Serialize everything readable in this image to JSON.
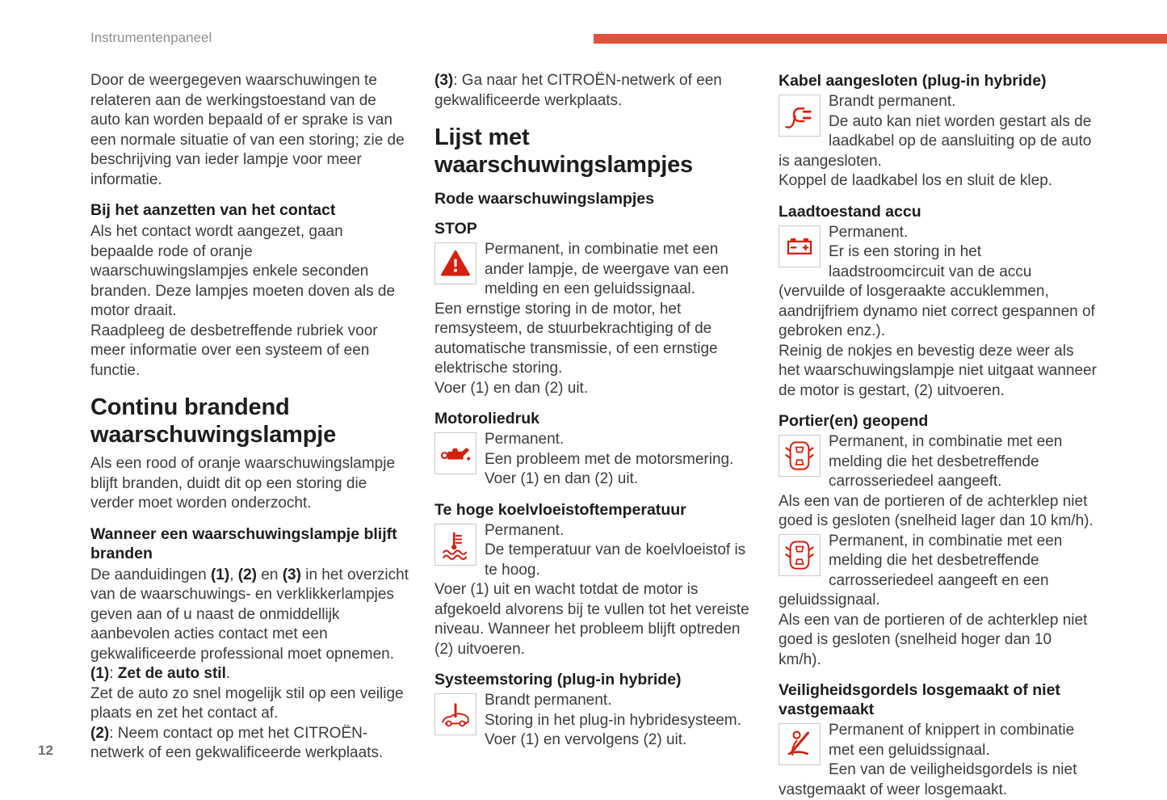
{
  "header": {
    "breadcrumb": "Instrumentenpaneel",
    "accent_bar_color": "#e2503c"
  },
  "footer": {
    "page_number": "12"
  },
  "colors": {
    "icon_red": "#d6200f",
    "heading": "#1d1d1b",
    "body_text": "#3c3c3c"
  },
  "col1": {
    "intro": "Door de weergegeven waarschuwingen te relateren aan de werkingstoestand van de auto kan worden bepaald of er sprake is van een normale situatie of van een storing; zie de beschrijving van ieder lampje voor meer informatie.",
    "h_contact": "Bij het aanzetten van het contact",
    "p_contact_1": "Als het contact wordt aangezet, gaan bepaalde rode of oranje waarschuwingslampjes enkele seconden branden. Deze lampjes moeten doven als de motor draait.",
    "p_contact_2": "Raadpleeg de desbetreffende rubriek voor meer informatie over een systeem of een functie.",
    "h_continu": "Continu brandend waarschuwingslampje",
    "p_continu": "Als een rood of oranje waarschuwingslampje blijft branden, duidt dit op een storing die verder moet worden onderzocht.",
    "h_blijft": "Wanneer een waarschuwingslampje blijft branden",
    "rich_aanduidingen": [
      {
        "t": "De aanduidingen "
      },
      {
        "t": "(1)",
        "b": true
      },
      {
        "t": ", "
      },
      {
        "t": "(2)",
        "b": true
      },
      {
        "t": " en "
      },
      {
        "t": "(3)",
        "b": true
      },
      {
        "t": " in het overzicht van de waarschuwings- en verklikkerlampjes geven aan of u naast de onmiddellijk aanbevolen acties contact met een gekwalificeerde professional moet opnemen."
      }
    ],
    "rich_actie1": [
      {
        "t": "(1)",
        "b": true
      },
      {
        "t": ": "
      },
      {
        "t": "Zet de auto stil",
        "b": true
      },
      {
        "t": "."
      }
    ],
    "p_actie1": "Zet de auto zo snel mogelijk stil op een veilige plaats en zet het contact af.",
    "rich_actie2": [
      {
        "t": "(2)",
        "b": true
      },
      {
        "t": ": Neem contact op met het CITROËN-netwerk of een gekwalificeerde werkplaats."
      }
    ]
  },
  "col2": {
    "rich_actie3": [
      {
        "t": "(3)",
        "b": true
      },
      {
        "t": ": Ga naar het CITROËN-netwerk of een gekwalificeerde werkplaats."
      }
    ],
    "h_lijst": "Lijst met waarschuwingslampjes",
    "h_rode": "Rode waarschuwingslampjes",
    "entries": [
      {
        "title": "STOP",
        "icon": "warning-triangle-icon",
        "paragraphs": [
          "Permanent, in combinatie met een ander lampje, de weergave van een melding en een geluidssignaal.",
          "Een ernstige storing in de motor, het remsysteem, de stuurbekrachtiging of de automatische transmissie, of een ernstige elektrische storing.",
          "Voer (1) en dan (2) uit."
        ]
      },
      {
        "title": "Motoroliedruk",
        "icon": "oil-can-icon",
        "paragraphs": [
          "Permanent.",
          "Een probleem met de motorsmering.",
          "Voer (1) en dan (2) uit."
        ]
      },
      {
        "title": "Te hoge koelvloeistoftemperatuur",
        "icon": "coolant-temperature-icon",
        "paragraphs": [
          "Permanent.",
          "De temperatuur van de koelvloeistof is te hoog.",
          "Voer (1) uit en wacht totdat de motor is afgekoeld alvorens bij te vullen tot het vereiste niveau. Wanneer het probleem blijft optreden (2) uitvoeren."
        ]
      },
      {
        "title": "Systeemstoring (plug-in hybride)",
        "icon": "hybrid-system-fault-icon",
        "paragraphs": [
          "Brandt permanent.",
          "Storing in het plug-in hybridesysteem.",
          "Voer (1) en vervolgens (2) uit."
        ]
      }
    ]
  },
  "col3": {
    "entries": [
      {
        "title": "Kabel aangesloten (plug-in hybride)",
        "icon": "charging-plug-icon",
        "paragraphs": [
          "Brandt permanent.",
          "De auto kan niet worden gestart als de laadkabel op de aansluiting op de auto is aangesloten.",
          "Koppel de laadkabel los en sluit de klep."
        ]
      },
      {
        "title": "Laadtoestand accu",
        "icon": "battery-icon",
        "paragraphs": [
          "Permanent.",
          "Er is een storing in het laadstroomcircuit van de accu (vervuilde of losgeraakte accuklemmen, aandrijfriem dynamo niet correct gespannen of gebroken enz.).",
          "Reinig de nokjes en bevestig deze weer als het waarschuwingslampje niet uitgaat wanneer de motor is gestart, (2) uitvoeren."
        ]
      },
      {
        "title": "Portier(en) geopend",
        "icon": "door-open-icon",
        "block_a": [
          "Permanent, in combinatie met een melding die het desbetreffende carrosseriedeel aangeeft.",
          "Als een van de portieren of de achterklep niet goed is gesloten (snelheid lager dan 10 km/h)."
        ],
        "block_b": [
          "Permanent, in combinatie met een melding die het desbetreffende carrosseriedeel aangeeft en een geluidssignaal.",
          "Als een van de portieren of de achterklep niet goed is gesloten (snelheid hoger dan 10 km/h)."
        ]
      },
      {
        "title": "Veiligheidsgordels losgemaakt of niet vastgemaakt",
        "icon": "seatbelt-icon",
        "paragraphs": [
          "Permanent of knippert in combinatie met een geluidssignaal.",
          "Een van de veiligheidsgordels is niet vastgemaakt of weer losgemaakt."
        ]
      }
    ]
  }
}
